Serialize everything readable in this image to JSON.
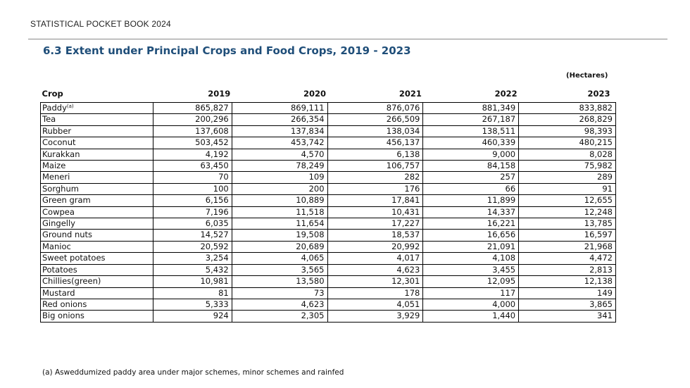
{
  "header": {
    "running_head": "STATISTICAL POCKET BOOK 2024",
    "title": "6.3 Extent under Principal Crops and Food Crops, 2019 - 2023",
    "unit": "(Hectares)"
  },
  "table": {
    "crop_header": "Crop",
    "years": [
      "2019",
      "2020",
      "2021",
      "2022",
      "2023"
    ],
    "rows": [
      {
        "name": "Paddy",
        "note": "(a)",
        "values": [
          "865,827",
          "869,111",
          "876,076",
          "881,349",
          "833,882"
        ]
      },
      {
        "name": "Tea",
        "values": [
          "200,296",
          "266,354",
          "266,509",
          "267,187",
          "268,829"
        ]
      },
      {
        "name": "Rubber",
        "values": [
          "137,608",
          "137,834",
          "138,034",
          "138,511",
          "98,393"
        ]
      },
      {
        "name": "Coconut",
        "values": [
          "503,452",
          "453,742",
          "456,137",
          "460,339",
          "480,215"
        ]
      },
      {
        "name": "Kurakkan",
        "values": [
          "4,192",
          "4,570",
          "6,138",
          "9,000",
          "8,028"
        ]
      },
      {
        "name": "Maize",
        "values": [
          "63,450",
          "78,249",
          "106,757",
          "84,158",
          "75,982"
        ]
      },
      {
        "name": "Meneri",
        "values": [
          "70",
          "109",
          "282",
          "257",
          "289"
        ]
      },
      {
        "name": "Sorghum",
        "values": [
          "100",
          "200",
          "176",
          "66",
          "91"
        ]
      },
      {
        "name": "Green gram",
        "values": [
          "6,156",
          "10,889",
          "17,841",
          "11,899",
          "12,655"
        ]
      },
      {
        "name": "Cowpea",
        "values": [
          "7,196",
          "11,518",
          "10,431",
          "14,337",
          "12,248"
        ]
      },
      {
        "name": "Gingelly",
        "values": [
          "6,035",
          "11,654",
          "17,227",
          "16,221",
          "13,785"
        ]
      },
      {
        "name": "Ground nuts",
        "values": [
          "14,527",
          "19,508",
          "18,537",
          "16,656",
          "16,597"
        ]
      },
      {
        "name": "Manioc",
        "values": [
          "20,592",
          "20,689",
          "20,992",
          "21,091",
          "21,968"
        ]
      },
      {
        "name": "Sweet potatoes",
        "values": [
          "3,254",
          "4,065",
          "4,017",
          "4,108",
          "4,472"
        ]
      },
      {
        "name": "Potatoes",
        "values": [
          "5,432",
          "3,565",
          "4,623",
          "3,455",
          "2,813"
        ]
      },
      {
        "name": "Chillies(green)",
        "values": [
          "10,981",
          "13,580",
          "12,301",
          "12,095",
          "12,138"
        ]
      },
      {
        "name": "Mustard",
        "values": [
          "81",
          "73",
          "178",
          "117",
          "149"
        ]
      },
      {
        "name": "Red onions",
        "values": [
          "5,333",
          "4,623",
          "4,051",
          "4,000",
          "3,865"
        ]
      },
      {
        "name": "Big onions",
        "values": [
          "924",
          "2,305",
          "3,929",
          "1,440",
          "341"
        ]
      }
    ]
  },
  "footnote": "(a)  Asweddumized paddy area under major schemes, minor schemes and rainfed"
}
